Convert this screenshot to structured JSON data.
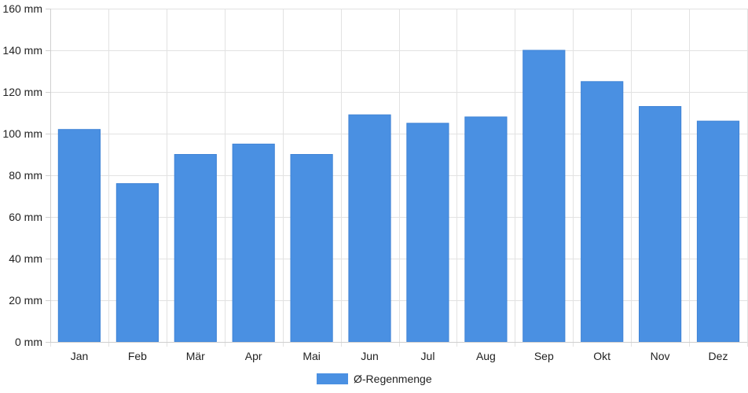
{
  "chart_data": {
    "type": "bar",
    "categories": [
      "Jan",
      "Feb",
      "Mär",
      "Apr",
      "Mai",
      "Jun",
      "Jul",
      "Aug",
      "Sep",
      "Okt",
      "Nov",
      "Dez"
    ],
    "series": [
      {
        "name": "Ø-Regenmenge",
        "values": [
          102,
          76,
          90,
          95,
          90,
          109,
          105,
          108,
          140,
          125,
          113,
          106
        ],
        "color": "#4a90e2"
      }
    ],
    "ylim": [
      0,
      160
    ],
    "yticks": [
      0,
      20,
      40,
      60,
      80,
      100,
      120,
      140,
      160
    ],
    "ytick_labels": [
      "0 mm",
      "20 mm",
      "40 mm",
      "60 mm",
      "80 mm",
      "100 mm",
      "120 mm",
      "140 mm",
      "160 mm"
    ],
    "grid": true,
    "legend_position": "bottom",
    "title": "",
    "xlabel": "",
    "ylabel": ""
  }
}
